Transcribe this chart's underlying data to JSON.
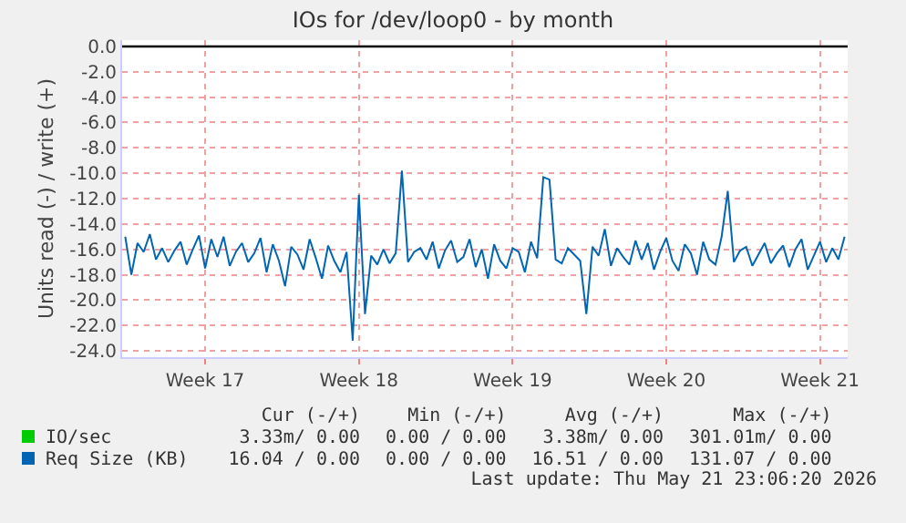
{
  "chart_data": {
    "type": "line",
    "title": "IOs for /dev/loop0 - by month",
    "ylabel": "Units read (-) / write (+)",
    "categories": [
      null,
      null,
      null,
      null,
      null,
      null,
      null,
      null,
      null,
      null,
      null,
      null,
      null,
      "Week 17",
      null,
      null,
      null,
      null,
      null,
      null,
      null,
      null,
      null,
      null,
      null,
      null,
      null,
      null,
      null,
      null,
      null,
      null,
      null,
      null,
      null,
      null,
      null,
      null,
      "Week 18",
      null,
      null,
      null,
      null,
      null,
      null,
      null,
      null,
      null,
      null,
      null,
      null,
      null,
      null,
      null,
      null,
      null,
      null,
      null,
      null,
      null,
      null,
      null,
      null,
      "Week 19",
      null,
      null,
      null,
      null,
      null,
      null,
      null,
      null,
      null,
      null,
      null,
      null,
      null,
      null,
      null,
      null,
      null,
      null,
      null,
      null,
      null,
      null,
      null,
      null,
      "Week 20",
      null,
      null,
      null,
      null,
      null,
      null,
      null,
      null,
      null,
      null,
      null,
      null,
      null,
      null,
      null,
      null,
      null,
      null,
      null,
      null,
      null,
      null,
      null,
      null,
      "Week 21",
      null,
      null,
      null,
      null
    ],
    "ylim": [
      -24.5,
      0.5
    ],
    "yticks": [
      {
        "value": 0,
        "label": "0.0"
      },
      {
        "value": -2,
        "label": "-2.0"
      },
      {
        "value": -4,
        "label": "-4.0"
      },
      {
        "value": -6,
        "label": "-6.0"
      },
      {
        "value": -8,
        "label": "-8.0"
      },
      {
        "value": -10,
        "label": "-10.0"
      },
      {
        "value": -12,
        "label": "-12.0"
      },
      {
        "value": -14,
        "label": "-14.0"
      },
      {
        "value": -16,
        "label": "-16.0"
      },
      {
        "value": -18,
        "label": "-18.0"
      },
      {
        "value": -20,
        "label": "-20.0"
      },
      {
        "value": -22,
        "label": "-22.0"
      },
      {
        "value": -24,
        "label": "-24.0"
      }
    ],
    "grid": true,
    "legend": "bottom",
    "marker": "none",
    "line_style": "solid",
    "ref_lines": [
      {
        "axis": "y",
        "value": 0,
        "color": "#000000"
      }
    ],
    "series": [
      {
        "name": "IO/sec",
        "color": "#00cc00",
        "values": [
          null,
          null,
          null,
          null,
          null,
          null,
          null,
          null,
          null,
          null,
          null,
          null,
          null,
          null,
          null,
          null,
          null,
          null,
          null,
          null,
          null,
          null,
          null,
          null,
          null,
          null,
          null,
          null,
          null,
          null,
          null,
          null,
          null,
          null,
          null,
          null,
          null,
          null,
          null,
          null,
          null,
          null,
          null,
          null,
          null,
          null,
          null,
          null,
          null,
          null,
          null,
          null,
          null,
          null,
          null,
          null,
          null,
          null,
          null,
          null,
          null,
          null,
          null,
          null,
          null,
          null,
          null,
          null,
          null,
          null,
          null,
          null,
          null,
          null,
          null,
          null,
          null,
          null,
          null,
          null,
          null,
          null,
          null,
          null,
          null,
          null,
          null,
          null,
          null,
          null,
          null,
          null,
          null,
          null,
          null,
          null,
          null,
          null,
          null,
          null,
          null,
          null,
          null,
          null,
          null,
          null,
          null,
          null,
          null,
          null,
          null,
          null,
          null,
          null,
          null,
          null,
          null,
          null
        ]
      },
      {
        "name": "Req Size (KB)",
        "color": "#0066b3",
        "values": [
          -15.0,
          -18.0,
          -15.5,
          -16.2,
          -14.8,
          -16.8,
          -15.9,
          -17.0,
          -16.1,
          -15.4,
          -17.2,
          -16.0,
          -14.9,
          -17.5,
          -15.2,
          -16.6,
          -15.0,
          -17.3,
          -16.2,
          -15.5,
          -17.0,
          -16.3,
          -15.1,
          -17.8,
          -15.6,
          -16.9,
          -18.9,
          -15.8,
          -16.4,
          -17.6,
          -15.2,
          -16.7,
          -18.3,
          -15.7,
          -16.9,
          -17.8,
          -16.2,
          -23.2,
          -11.7,
          -21.1,
          -16.5,
          -17.2,
          -16.0,
          -17.1,
          -16.3,
          -9.8,
          -17.0,
          -16.2,
          -15.9,
          -16.8,
          -15.4,
          -17.5,
          -16.1,
          -15.3,
          -17.0,
          -16.6,
          -15.2,
          -17.4,
          -16.0,
          -18.3,
          -15.6,
          -16.9,
          -17.5,
          -15.9,
          -16.2,
          -17.8,
          -15.4,
          -16.7,
          -10.3,
          -10.5,
          -16.8,
          -17.1,
          -15.9,
          -16.4,
          -16.9,
          -21.1,
          -15.8,
          -16.5,
          -14.4,
          -17.3,
          -15.9,
          -16.6,
          -17.2,
          -15.3,
          -16.8,
          -15.5,
          -17.6,
          -16.2,
          -15.1,
          -16.9,
          -17.7,
          -15.6,
          -16.3,
          -18.0,
          -15.4,
          -16.8,
          -17.2,
          -15.0,
          -11.4,
          -17.0,
          -16.1,
          -15.8,
          -17.3,
          -16.4,
          -15.5,
          -17.1,
          -16.3,
          -15.7,
          -17.4,
          -16.0,
          -15.2,
          -17.6,
          -16.5,
          -15.4,
          -17.0,
          -15.9,
          -16.8,
          -15.0
        ]
      }
    ],
    "annotations": [
      "Cur (-/+)",
      "Min (-/+)",
      "Avg (-/+)",
      "Max (-/+)",
      "3.33m/ 0.00",
      "0.00 / 0.00",
      "3.38m/ 0.00",
      "301.01m/ 0.00",
      "16.04 / 0.00",
      "0.00 / 0.00",
      "16.51 / 0.00",
      "131.07 / 0.00",
      "Last update: Thu May 21 23:06:20 2026"
    ]
  }
}
